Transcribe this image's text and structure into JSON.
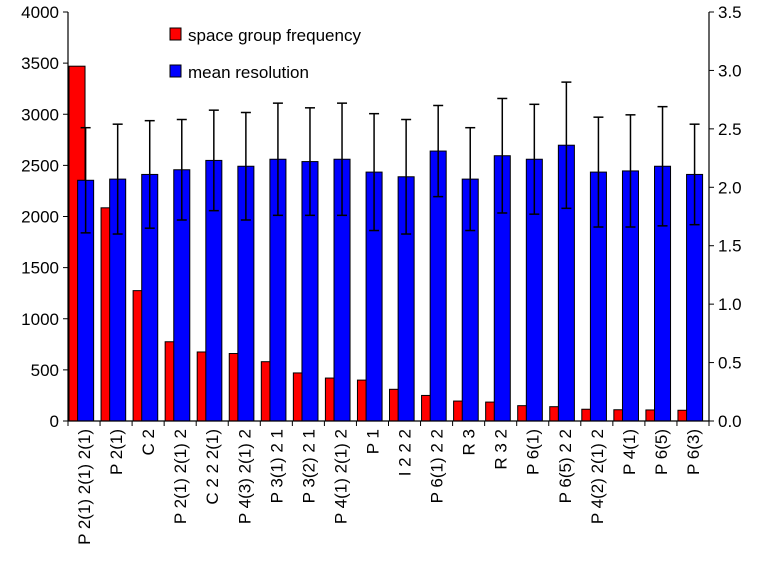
{
  "chart_data": {
    "type": "bar",
    "categories": [
      "P 2(1) 2(1) 2(1)",
      "P 2(1)",
      "C 2",
      "P 2(1) 2(1) 2",
      "C 2 2 2(1)",
      "P 4(3) 2(1) 2",
      "P 3(1) 2 1",
      "P 3(2) 2 1",
      "P 4(1) 2(1) 2",
      "P 1",
      "I 2 2 2",
      "P 6(1) 2 2",
      "R 3",
      "R 3 2",
      "P 6(1)",
      "P 6(5) 2 2",
      "P 4(2) 2(1) 2",
      "P 4(1)",
      "P 6(5)",
      "P 6(3)"
    ],
    "series": [
      {
        "name": "space group frequency",
        "axis": "left",
        "color": "#ff0000",
        "values": [
          3470,
          2085,
          1275,
          775,
          675,
          660,
          580,
          470,
          420,
          400,
          310,
          250,
          195,
          185,
          150,
          140,
          115,
          110,
          108,
          105
        ]
      },
      {
        "name": "mean resolution",
        "axis": "right",
        "color": "#0000ff",
        "values": [
          2.06,
          2.07,
          2.11,
          2.15,
          2.23,
          2.18,
          2.24,
          2.22,
          2.24,
          2.13,
          2.09,
          2.31,
          2.07,
          2.27,
          2.24,
          2.36,
          2.13,
          2.14,
          2.18,
          2.11
        ],
        "error": [
          0.45,
          0.47,
          0.46,
          0.43,
          0.43,
          0.46,
          0.48,
          0.46,
          0.48,
          0.5,
          0.49,
          0.39,
          0.44,
          0.49,
          0.47,
          0.54,
          0.47,
          0.48,
          0.51,
          0.43
        ]
      }
    ],
    "y_left": {
      "ylim": [
        0,
        4000
      ],
      "ticks": [
        0,
        500,
        1000,
        1500,
        2000,
        2500,
        3000,
        3500,
        4000
      ],
      "tick_labels": [
        "0",
        "500",
        "1000",
        "1500",
        "2000",
        "2500",
        "3000",
        "3500",
        "4000"
      ]
    },
    "y_right": {
      "ylim": [
        0,
        3.5
      ],
      "ticks": [
        0,
        0.5,
        1.0,
        1.5,
        2.0,
        2.5,
        3.0,
        3.5
      ],
      "tick_labels": [
        "0.0",
        "0.5",
        "1.0",
        "1.5",
        "2.0",
        "2.5",
        "3.0",
        "3.5"
      ]
    },
    "legend_position": "top",
    "grid": false,
    "title": "",
    "xlabel": "",
    "ylabel": ""
  }
}
